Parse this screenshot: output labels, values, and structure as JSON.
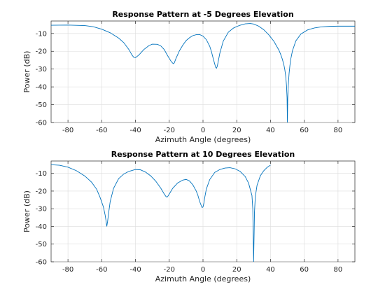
{
  "chart_data": [
    {
      "type": "line",
      "title": "Response Pattern at -5 Degrees Elevation",
      "xlabel": "Azimuth Angle (degrees)",
      "ylabel": "Power (dB)",
      "xlim": [
        -90,
        90
      ],
      "ylim": [
        -60,
        -3
      ],
      "xticks": [
        -80,
        -60,
        -40,
        -20,
        0,
        20,
        40,
        60,
        80
      ],
      "yticks": [
        -10,
        -20,
        -30,
        -40,
        -50,
        -60
      ],
      "grid": true,
      "line_color": "#0072bd",
      "series": [
        {
          "x": [
            -90,
            -80,
            -70,
            -65,
            -60,
            -55,
            -50,
            -47,
            -44,
            -42,
            -41,
            -40,
            -38,
            -35,
            -32,
            -30,
            -27,
            -25,
            -23,
            -21,
            -19,
            -18,
            -17.5,
            -17,
            -16,
            -14,
            -12,
            -10,
            -8,
            -6,
            -4,
            -2,
            0,
            2,
            4,
            5,
            6,
            7,
            7.5,
            8,
            8.5,
            9,
            10,
            12,
            15,
            18,
            20,
            22,
            25,
            28,
            30,
            33,
            36,
            39,
            42,
            45,
            46,
            47,
            48,
            48.5,
            49,
            49.5,
            49.8,
            50,
            50.2,
            50.5,
            51,
            51.5,
            52,
            53,
            55,
            58,
            62,
            66,
            70,
            75,
            80,
            85,
            90
          ],
          "y": [
            -5.4,
            -5.3,
            -5.6,
            -6.2,
            -7.6,
            -9.6,
            -12.6,
            -15.1,
            -18.9,
            -22.2,
            -23.4,
            -23.6,
            -22.1,
            -19.0,
            -16.8,
            -16.0,
            -16.1,
            -17.0,
            -19.0,
            -22.4,
            -25.5,
            -26.6,
            -27.0,
            -26.5,
            -24.0,
            -19.8,
            -16.6,
            -14.0,
            -12.4,
            -11.2,
            -10.7,
            -10.6,
            -11.5,
            -13.5,
            -17.2,
            -20.2,
            -23.9,
            -27.3,
            -29.0,
            -29.5,
            -28.3,
            -25.8,
            -21.0,
            -14.3,
            -9.3,
            -7.0,
            -6.1,
            -5.4,
            -4.6,
            -4.4,
            -4.7,
            -5.9,
            -7.9,
            -10.8,
            -14.4,
            -19.4,
            -21.7,
            -24.4,
            -28.0,
            -30.5,
            -33.9,
            -39.5,
            -46.0,
            -60.0,
            -46.5,
            -39.5,
            -32.5,
            -28.0,
            -24.4,
            -19.7,
            -14.2,
            -10.3,
            -8.0,
            -6.9,
            -6.3,
            -6.0,
            -5.9,
            -5.9,
            -5.9
          ]
        }
      ]
    },
    {
      "type": "line",
      "title": "Response Pattern at 10 Degrees Elevation",
      "xlabel": "Azimuth Angle (degrees)",
      "ylabel": "Power (dB)",
      "xlim": [
        -90,
        90
      ],
      "ylim": [
        -60,
        -3
      ],
      "xticks": [
        -80,
        -60,
        -40,
        -20,
        0,
        20,
        40,
        60,
        80
      ],
      "yticks": [
        -10,
        -20,
        -30,
        -40,
        -50,
        -60
      ],
      "grid": true,
      "line_color": "#0072bd",
      "series": [
        {
          "x": [
            -90,
            -85,
            -80,
            -75,
            -70,
            -66,
            -63,
            -61,
            -59,
            -58,
            -57.5,
            -57,
            -56.5,
            -56,
            -55,
            -53,
            -50,
            -47,
            -44,
            -40,
            -37,
            -34,
            -31,
            -28,
            -25,
            -23,
            -22,
            -21.5,
            -21,
            -20,
            -18,
            -15,
            -12,
            -10,
            -8,
            -6,
            -4,
            -3,
            -2,
            -1,
            -0.5,
            0,
            0.5,
            1,
            2,
            4,
            7,
            10,
            13,
            16,
            19,
            22,
            25,
            27,
            29,
            29.5,
            30,
            30.5,
            31,
            32,
            34,
            36,
            38,
            40
          ],
          "y": [
            -5.1,
            -5.4,
            -6.5,
            -8.5,
            -11.5,
            -15.0,
            -19.0,
            -23.5,
            -29.0,
            -33.5,
            -36.5,
            -40.0,
            -37.0,
            -33.0,
            -26.0,
            -18.5,
            -13.0,
            -10.4,
            -8.9,
            -7.8,
            -8.0,
            -9.3,
            -11.4,
            -14.4,
            -18.4,
            -21.6,
            -23.0,
            -23.4,
            -23.2,
            -21.7,
            -18.5,
            -15.4,
            -13.8,
            -13.4,
            -14.3,
            -16.5,
            -20.0,
            -22.5,
            -25.8,
            -28.3,
            -29.3,
            -29.0,
            -27.0,
            -23.8,
            -18.8,
            -13.5,
            -9.4,
            -7.8,
            -7.0,
            -6.8,
            -7.4,
            -8.9,
            -11.8,
            -15.5,
            -22.5,
            -30.0,
            -60.0,
            -32.0,
            -23.2,
            -16.8,
            -11.3,
            -8.5,
            -6.6,
            -5.3
          ]
        }
      ]
    }
  ]
}
